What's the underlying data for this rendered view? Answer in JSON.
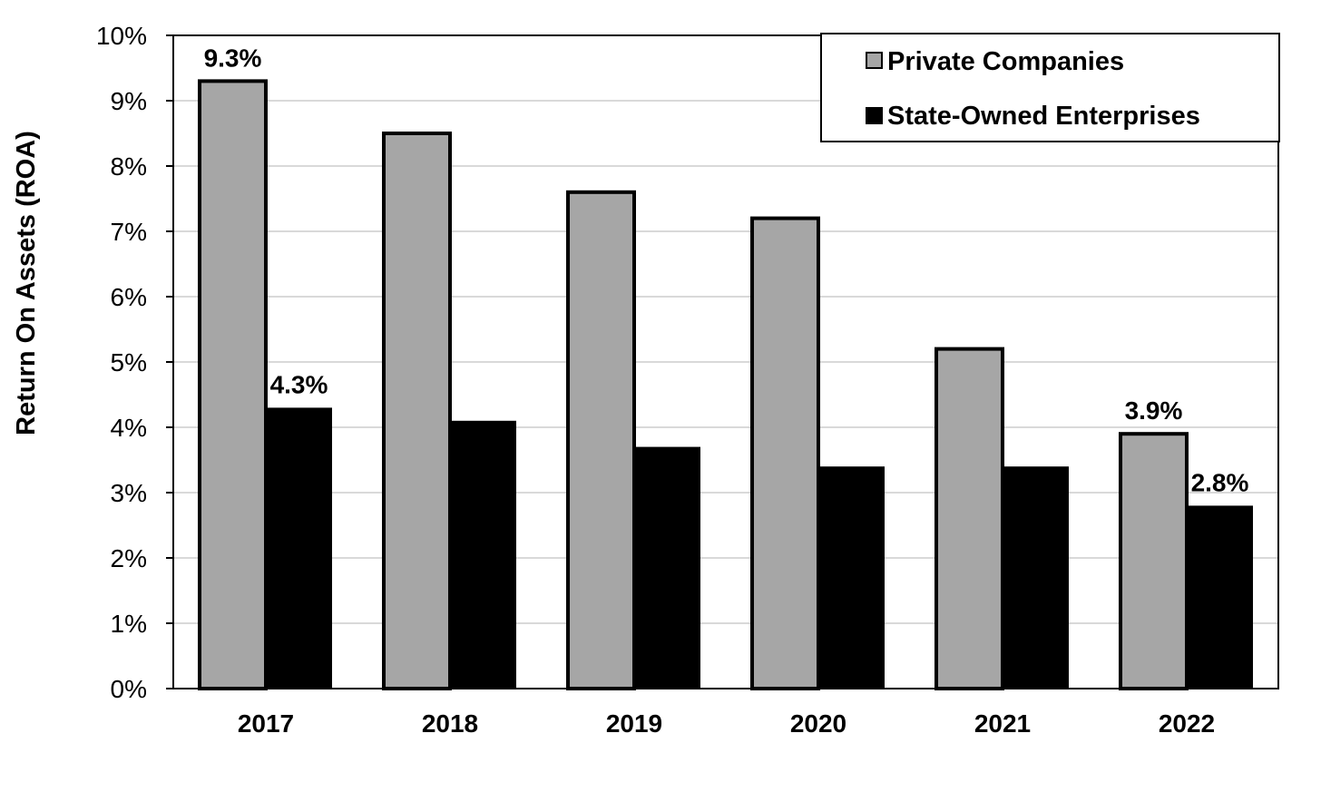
{
  "chart_data": {
    "type": "bar",
    "title": "",
    "xlabel": "",
    "ylabel": "Return On Assets (ROA)",
    "ylim": [
      0,
      10
    ],
    "y_ticks": [
      "0%",
      "1%",
      "2%",
      "3%",
      "4%",
      "5%",
      "6%",
      "7%",
      "8%",
      "9%",
      "10%"
    ],
    "categories": [
      "2017",
      "2018",
      "2019",
      "2020",
      "2021",
      "2022"
    ],
    "series": [
      {
        "name": "Private Companies",
        "color": "#a6a6a6",
        "values": [
          9.3,
          8.5,
          7.6,
          7.2,
          5.2,
          3.9
        ],
        "data_labels": [
          "9.3%",
          "",
          "",
          "",
          "",
          "3.9%"
        ]
      },
      {
        "name": "State-Owned Enterprises",
        "color": "#000000",
        "values": [
          4.3,
          4.1,
          3.7,
          3.4,
          3.4,
          2.8
        ],
        "data_labels": [
          "4.3%",
          "",
          "",
          "",
          "",
          "2.8%"
        ]
      }
    ],
    "grid": true,
    "legend_position": "top-right"
  }
}
